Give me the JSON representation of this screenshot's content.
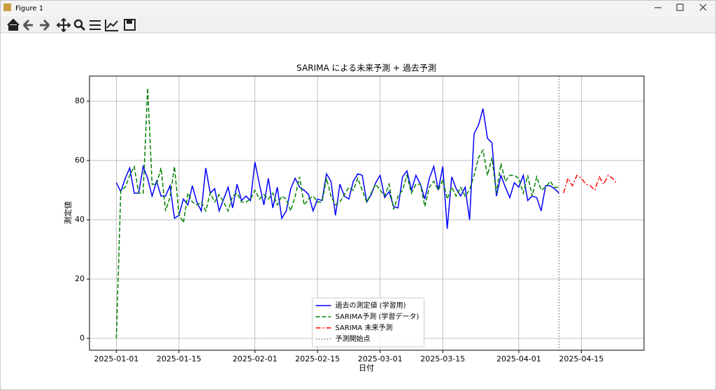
{
  "window": {
    "title": "Figure 1"
  },
  "chart_data": {
    "type": "line",
    "title": "SARIMA による未来予測 + 過去予測",
    "xlabel": "日付",
    "ylabel": "測定値",
    "xlim": [
      "2024-12-26",
      "2025-04-29"
    ],
    "xticks": [
      "2025-01-01",
      "2025-01-15",
      "2025-02-01",
      "2025-02-15",
      "2025-03-01",
      "2025-03-15",
      "2025-04-01",
      "2025-04-15"
    ],
    "ylim": [
      -4,
      88.5
    ],
    "yticks": [
      0,
      20,
      40,
      60,
      80
    ],
    "grid": true,
    "legend": "lower center",
    "series": [
      {
        "name": "過去の測定値 (学習用)",
        "color": "#0000ff",
        "style": "solid",
        "x": [
          "2025-01-01",
          "2025-01-02",
          "2025-01-03",
          "2025-01-04",
          "2025-01-05",
          "2025-01-06",
          "2025-01-07",
          "2025-01-08",
          "2025-01-09",
          "2025-01-10",
          "2025-01-11",
          "2025-01-12",
          "2025-01-13",
          "2025-01-14",
          "2025-01-15",
          "2025-01-16",
          "2025-01-17",
          "2025-01-18",
          "2025-01-19",
          "2025-01-20",
          "2025-01-21",
          "2025-01-22",
          "2025-01-23",
          "2025-01-24",
          "2025-01-25",
          "2025-01-26",
          "2025-01-27",
          "2025-01-28",
          "2025-01-29",
          "2025-01-30",
          "2025-01-31",
          "2025-02-01",
          "2025-02-02",
          "2025-02-03",
          "2025-02-04",
          "2025-02-05",
          "2025-02-06",
          "2025-02-07",
          "2025-02-08",
          "2025-02-09",
          "2025-02-10",
          "2025-02-11",
          "2025-02-12",
          "2025-02-13",
          "2025-02-14",
          "2025-02-15",
          "2025-02-16",
          "2025-02-17",
          "2025-02-18",
          "2025-02-19",
          "2025-02-20",
          "2025-02-21",
          "2025-02-22",
          "2025-02-23",
          "2025-02-24",
          "2025-02-25",
          "2025-02-26",
          "2025-02-27",
          "2025-02-28",
          "2025-03-01",
          "2025-03-02",
          "2025-03-03",
          "2025-03-04",
          "2025-03-05",
          "2025-03-06",
          "2025-03-07",
          "2025-03-08",
          "2025-03-09",
          "2025-03-10",
          "2025-03-11",
          "2025-03-12",
          "2025-03-13",
          "2025-03-14",
          "2025-03-15",
          "2025-03-16",
          "2025-03-17",
          "2025-03-18",
          "2025-03-19",
          "2025-03-20",
          "2025-03-21",
          "2025-03-22",
          "2025-03-23",
          "2025-03-24",
          "2025-03-25",
          "2025-03-26",
          "2025-03-27",
          "2025-03-28",
          "2025-03-29",
          "2025-03-30",
          "2025-03-31",
          "2025-04-01",
          "2025-04-02",
          "2025-04-03",
          "2025-04-04",
          "2025-04-05",
          "2025-04-06",
          "2025-04-07",
          "2025-04-08",
          "2025-04-09",
          "2025-04-10"
        ],
        "values": [
          52.5,
          49.5,
          54,
          57.5,
          49,
          49,
          58,
          54,
          48,
          53,
          48,
          48,
          51.5,
          40.5,
          41.5,
          47,
          45,
          51.5,
          46,
          43,
          57.5,
          49,
          50.5,
          43,
          47,
          51,
          44,
          52,
          46.5,
          48,
          46.5,
          59.5,
          52,
          45,
          54,
          44,
          51,
          40.5,
          43,
          50.5,
          54,
          51,
          50,
          48.5,
          43,
          47,
          46.5,
          55.5,
          53,
          41.5,
          52,
          48,
          47,
          53,
          55.5,
          55,
          46,
          48.5,
          52.5,
          55,
          47.5,
          49.5,
          44.5,
          44,
          54.5,
          56.5,
          50,
          55,
          52,
          47,
          54,
          58,
          50,
          58,
          37,
          54.5,
          50.5,
          48,
          51,
          40,
          69,
          72,
          77.5,
          67.5,
          66,
          48,
          55,
          51,
          47.5,
          52.5,
          51,
          55,
          46.5,
          48,
          47.5,
          43,
          51.5,
          51.5,
          50.5,
          49
        ]
      },
      {
        "name": "SARIMA予測 (学習データ)",
        "color": "#008000",
        "style": "dashed",
        "x": [
          "2025-01-01",
          "2025-01-02",
          "2025-01-03",
          "2025-01-04",
          "2025-01-05",
          "2025-01-06",
          "2025-01-07",
          "2025-01-08",
          "2025-01-09",
          "2025-01-10",
          "2025-01-11",
          "2025-01-12",
          "2025-01-13",
          "2025-01-14",
          "2025-01-15",
          "2025-01-16",
          "2025-01-17",
          "2025-01-18",
          "2025-01-19",
          "2025-01-20",
          "2025-01-21",
          "2025-01-22",
          "2025-01-23",
          "2025-01-24",
          "2025-01-25",
          "2025-01-26",
          "2025-01-27",
          "2025-01-28",
          "2025-01-29",
          "2025-01-30",
          "2025-01-31",
          "2025-02-01",
          "2025-02-02",
          "2025-02-03",
          "2025-02-04",
          "2025-02-05",
          "2025-02-06",
          "2025-02-07",
          "2025-02-08",
          "2025-02-09",
          "2025-02-10",
          "2025-02-11",
          "2025-02-12",
          "2025-02-13",
          "2025-02-14",
          "2025-02-15",
          "2025-02-16",
          "2025-02-17",
          "2025-02-18",
          "2025-02-19",
          "2025-02-20",
          "2025-02-21",
          "2025-02-22",
          "2025-02-23",
          "2025-02-24",
          "2025-02-25",
          "2025-02-26",
          "2025-02-27",
          "2025-02-28",
          "2025-03-01",
          "2025-03-02",
          "2025-03-03",
          "2025-03-04",
          "2025-03-05",
          "2025-03-06",
          "2025-03-07",
          "2025-03-08",
          "2025-03-09",
          "2025-03-10",
          "2025-03-11",
          "2025-03-12",
          "2025-03-13",
          "2025-03-14",
          "2025-03-15",
          "2025-03-16",
          "2025-03-17",
          "2025-03-18",
          "2025-03-19",
          "2025-03-20",
          "2025-03-21",
          "2025-03-22",
          "2025-03-23",
          "2025-03-24",
          "2025-03-25",
          "2025-03-26",
          "2025-03-27",
          "2025-03-28",
          "2025-03-29",
          "2025-03-30",
          "2025-03-31",
          "2025-04-01",
          "2025-04-02",
          "2025-04-03",
          "2025-04-04",
          "2025-04-05",
          "2025-04-06",
          "2025-04-07",
          "2025-04-08",
          "2025-04-09",
          "2025-04-10"
        ],
        "values": [
          0,
          50,
          51,
          55,
          58,
          49,
          49,
          84.5,
          52,
          52,
          57.5,
          43,
          47.5,
          58,
          42,
          39,
          49,
          46,
          45,
          46,
          43,
          49,
          46,
          48.5,
          46,
          43,
          48,
          49,
          46,
          46,
          47,
          50,
          47,
          48.5,
          47,
          49,
          45,
          48,
          47,
          43,
          48,
          54.5,
          45,
          47,
          48,
          46,
          46,
          54,
          48,
          45,
          46,
          48.5,
          51,
          50,
          54,
          50,
          46,
          49,
          52,
          50,
          48,
          52,
          43.5,
          48,
          50,
          55,
          49,
          52,
          52,
          44.5,
          51,
          53,
          50,
          53.5,
          47,
          51,
          48,
          51,
          48,
          50,
          55,
          61,
          63.5,
          55,
          61,
          49,
          59,
          53,
          55,
          55,
          54,
          49,
          55,
          48,
          54.5,
          50,
          51,
          53,
          51,
          51
        ]
      },
      {
        "name": "SARIMA 未来予測",
        "color": "#ff0000",
        "style": "dashdot",
        "x": [
          "2025-04-11",
          "2025-04-12",
          "2025-04-13",
          "2025-04-14",
          "2025-04-15",
          "2025-04-16",
          "2025-04-17",
          "2025-04-18",
          "2025-04-19",
          "2025-04-20",
          "2025-04-21",
          "2025-04-22",
          "2025-04-23"
        ],
        "values": [
          49,
          54,
          51.5,
          55,
          54,
          52,
          51.5,
          50,
          54.5,
          52,
          55,
          54,
          52
        ]
      }
    ],
    "vline": {
      "name": "予測開始点",
      "x": "2025-04-10",
      "color": "#808080",
      "style": "dotted"
    }
  }
}
